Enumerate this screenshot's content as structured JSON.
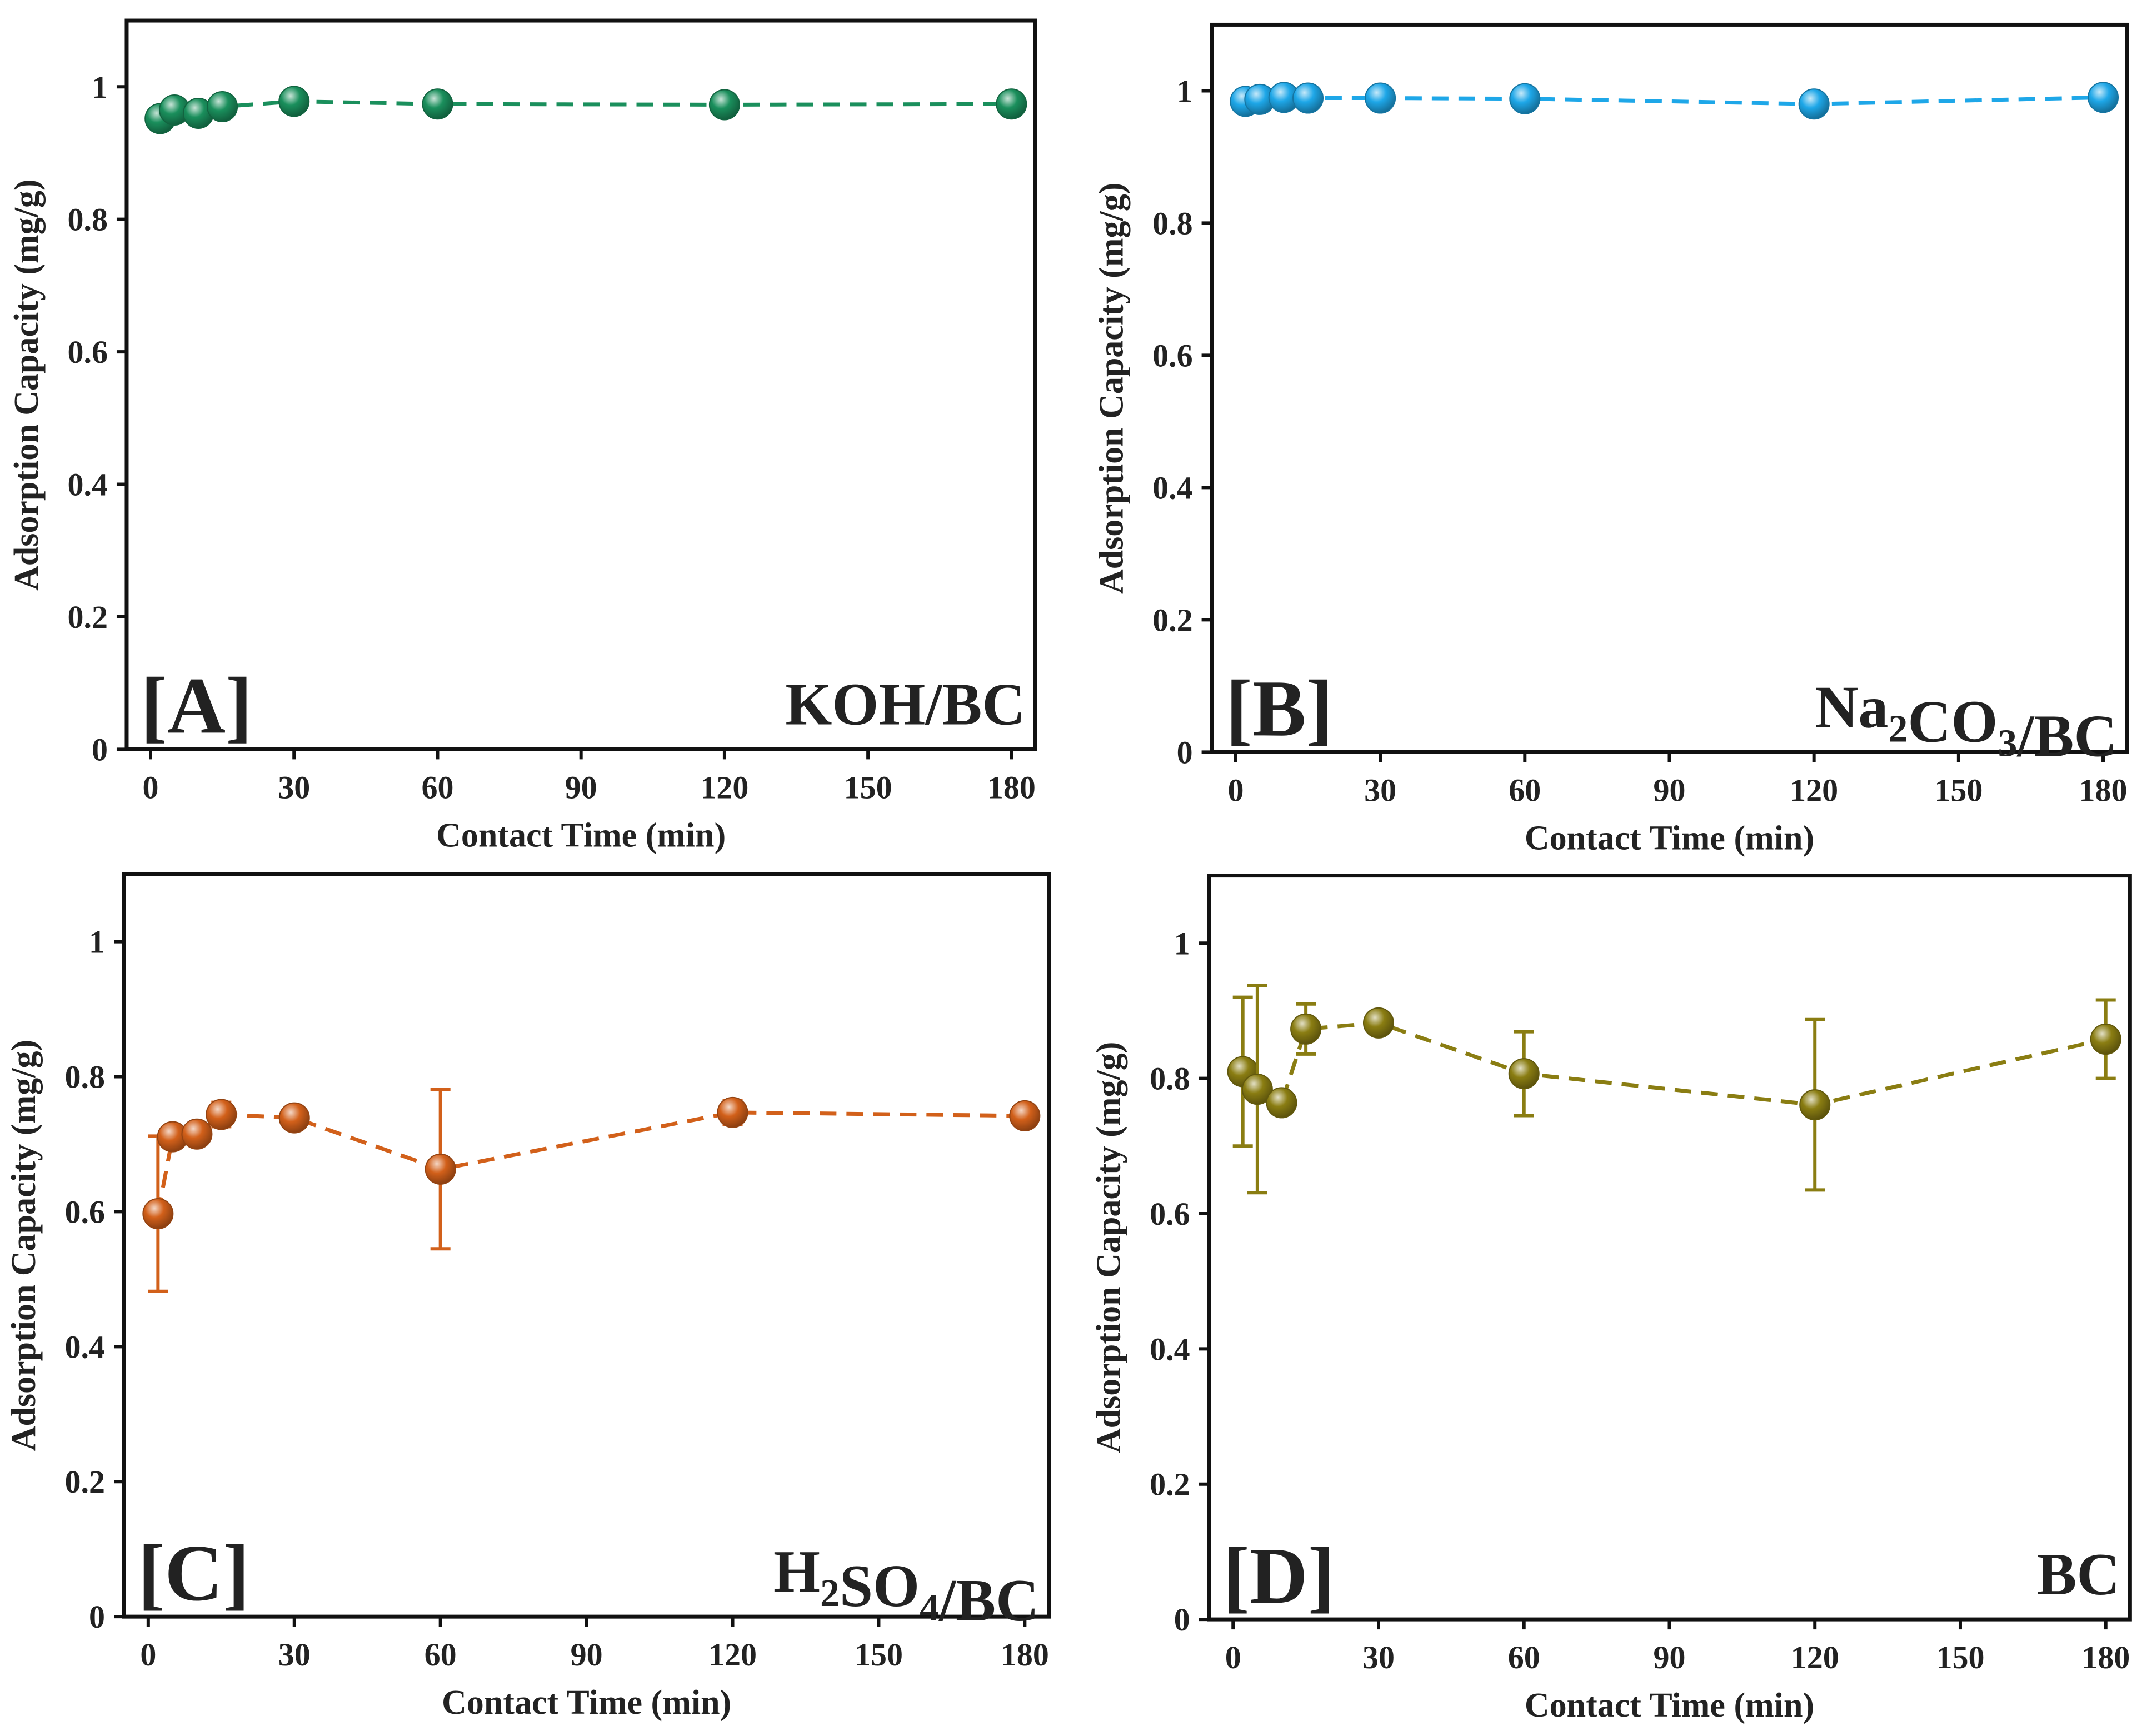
{
  "chart_data": [
    {
      "type": "scatter",
      "panel_tag": "[A]",
      "material": {
        "main": "KOH/BC",
        "parts": [
          {
            "text": "KOH/BC"
          }
        ]
      },
      "xlabel": "Contact Time (min)",
      "ylabel": "Adsorption Capacity (mg/g)",
      "xlim": [
        -5,
        185
      ],
      "ylim": [
        0,
        1.1
      ],
      "xticks": [
        0,
        30,
        60,
        90,
        120,
        150,
        180
      ],
      "yticks": [
        0,
        0.2,
        0.4,
        0.6,
        0.8,
        1
      ],
      "xtick_labels": [
        "0",
        "30",
        "60",
        "90",
        "120",
        "150",
        "180"
      ],
      "ytick_labels": [
        "0",
        "0.2",
        "0.4",
        "0.6",
        "0.8",
        "1"
      ],
      "grid": false,
      "connector": "dashed line",
      "color": "#1a8f5c",
      "series": [
        {
          "x": [
            2,
            5,
            10,
            15,
            30,
            60,
            120,
            180
          ],
          "y": [
            0.952,
            0.965,
            0.96,
            0.97,
            0.978,
            0.974,
            0.973,
            0.974
          ],
          "err": [
            0.004,
            0.004,
            0.004,
            0.004,
            0.004,
            0.004,
            0.004,
            0.004
          ]
        }
      ]
    },
    {
      "type": "scatter",
      "panel_tag": "[B]",
      "material": {
        "main": "Na2CO3/BC",
        "parts": [
          {
            "text": "Na"
          },
          {
            "text": "2",
            "sub": true
          },
          {
            "text": "CO"
          },
          {
            "text": "3",
            "sub": true
          },
          {
            "text": "/BC"
          }
        ]
      },
      "xlabel": "Contact Time (min)",
      "ylabel": "Adsorption Capacity (mg/g)",
      "xlim": [
        -5,
        185
      ],
      "ylim": [
        0,
        1.1
      ],
      "xticks": [
        0,
        30,
        60,
        90,
        120,
        150,
        180
      ],
      "yticks": [
        0,
        0.2,
        0.4,
        0.6,
        0.8,
        1
      ],
      "xtick_labels": [
        "0",
        "30",
        "60",
        "90",
        "120",
        "150",
        "180"
      ],
      "ytick_labels": [
        "0",
        "0.2",
        "0.4",
        "0.6",
        "0.8",
        "1"
      ],
      "grid": false,
      "connector": "dashed line",
      "color": "#1ea7e8",
      "series": [
        {
          "x": [
            2,
            5,
            10,
            15,
            30,
            60,
            120,
            180
          ],
          "y": [
            0.984,
            0.987,
            0.99,
            0.989,
            0.989,
            0.988,
            0.98,
            0.99
          ],
          "err": [
            0.004,
            0.004,
            0.004,
            0.004,
            0.004,
            0.004,
            0.004,
            0.004
          ]
        }
      ]
    },
    {
      "type": "scatter",
      "panel_tag": "[C]",
      "material": {
        "main": "H2SO4/BC",
        "parts": [
          {
            "text": "H"
          },
          {
            "text": "2",
            "sub": true
          },
          {
            "text": "SO"
          },
          {
            "text": "4",
            "sub": true
          },
          {
            "text": "/BC"
          }
        ]
      },
      "xlabel": "Contact Time (min)",
      "ylabel": "Adsorption Capacity (mg/g)",
      "xlim": [
        -5,
        185
      ],
      "ylim": [
        0,
        1.1
      ],
      "xticks": [
        0,
        30,
        60,
        90,
        120,
        150,
        180
      ],
      "yticks": [
        0,
        0.2,
        0.4,
        0.6,
        0.8,
        1
      ],
      "xtick_labels": [
        "0",
        "30",
        "60",
        "90",
        "120",
        "150",
        "180"
      ],
      "ytick_labels": [
        "0",
        "0.2",
        "0.4",
        "0.6",
        "0.8",
        "1"
      ],
      "grid": false,
      "connector": "dashed line",
      "color": "#d2601a",
      "series": [
        {
          "x": [
            2,
            5,
            10,
            15,
            30,
            60,
            120,
            180
          ],
          "y": [
            0.597,
            0.711,
            0.715,
            0.744,
            0.739,
            0.663,
            0.747,
            0.742
          ],
          "err": [
            0.115,
            0.006,
            0.006,
            0.018,
            0.008,
            0.118,
            0.018,
            0.006
          ]
        }
      ]
    },
    {
      "type": "scatter",
      "panel_tag": "[D]",
      "material": {
        "main": "BC",
        "parts": [
          {
            "text": "BC"
          }
        ]
      },
      "xlabel": "Contact Time (min)",
      "ylabel": "Adsorption Capacity (mg/g)",
      "xlim": [
        -5,
        185
      ],
      "ylim": [
        0,
        1.1
      ],
      "xticks": [
        0,
        30,
        60,
        90,
        120,
        150,
        180
      ],
      "yticks": [
        0,
        0.2,
        0.4,
        0.6,
        0.8,
        1
      ],
      "xtick_labels": [
        "0",
        "30",
        "60",
        "90",
        "120",
        "150",
        "180"
      ],
      "ytick_labels": [
        "0",
        "0.2",
        "0.4",
        "0.6",
        "0.8",
        "1"
      ],
      "grid": false,
      "connector": "dashed line",
      "color": "#8a7d12",
      "series": [
        {
          "x": [
            2,
            5,
            10,
            15,
            30,
            60,
            120,
            180
          ],
          "y": [
            0.81,
            0.784,
            0.764,
            0.873,
            0.882,
            0.807,
            0.761,
            0.858
          ],
          "err": [
            0.11,
            0.153,
            0.005,
            0.037,
            0.012,
            0.062,
            0.126,
            0.058
          ]
        }
      ]
    }
  ]
}
